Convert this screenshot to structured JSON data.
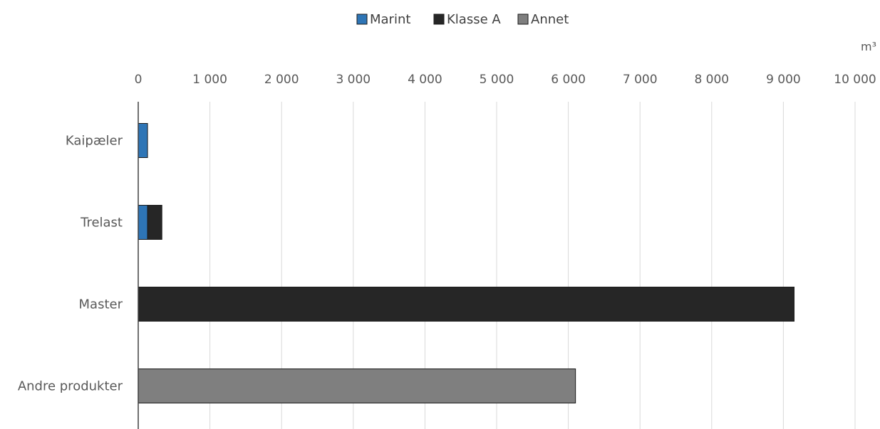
{
  "chart_data": {
    "type": "bar",
    "orientation": "horizontal",
    "stacked": true,
    "title": "",
    "unit": "m³",
    "categories": [
      "Kaipæler",
      "Trelast",
      "Master",
      "Andre produkter"
    ],
    "series": [
      {
        "name": "Marint",
        "color": "#2E75B6",
        "values": [
          130,
          130,
          0,
          0
        ]
      },
      {
        "name": "Klasse A",
        "color": "#262626",
        "values": [
          0,
          200,
          9150,
          0
        ]
      },
      {
        "name": "Annet",
        "color": "#7F7F7F",
        "values": [
          0,
          0,
          0,
          6100
        ]
      }
    ],
    "xlim": [
      0,
      10000
    ],
    "x_ticks": [
      0,
      1000,
      2000,
      3000,
      4000,
      5000,
      6000,
      7000,
      8000,
      9000,
      10000
    ],
    "x_tick_labels": [
      "0",
      "1 000",
      "2 000",
      "3 000",
      "4 000",
      "5 000",
      "6 000",
      "7 000",
      "8 000",
      "9 000",
      "10 000"
    ],
    "x_axis_position": "top",
    "grid": "vertical",
    "legend_position": "top-center"
  }
}
